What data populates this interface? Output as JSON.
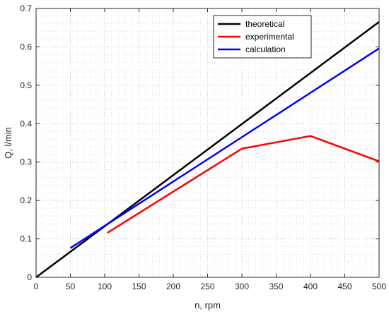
{
  "chart_data": {
    "type": "line",
    "title": "",
    "xlabel": "n, rpm",
    "ylabel": "Q, l/min",
    "xlim": [
      0,
      500
    ],
    "ylim": [
      0,
      0.7
    ],
    "xticks": [
      0,
      50,
      100,
      150,
      200,
      250,
      300,
      350,
      400,
      450,
      500
    ],
    "yticks": [
      0,
      0.1,
      0.2,
      0.3,
      0.4,
      0.5,
      0.6,
      0.7
    ],
    "grid": true,
    "minor_grid": true,
    "legend_position": "top-right",
    "series": [
      {
        "name": "theoretical",
        "color": "#000000",
        "x": [
          0,
          500
        ],
        "y": [
          0,
          0.665
        ]
      },
      {
        "name": "experimental",
        "color": "#ff0000",
        "x": [
          104,
          300,
          400,
          500
        ],
        "y": [
          0.116,
          0.335,
          0.368,
          0.302
        ]
      },
      {
        "name": "calculation",
        "color": "#0000ff",
        "x": [
          50,
          500
        ],
        "y": [
          0.076,
          0.596
        ]
      }
    ]
  }
}
